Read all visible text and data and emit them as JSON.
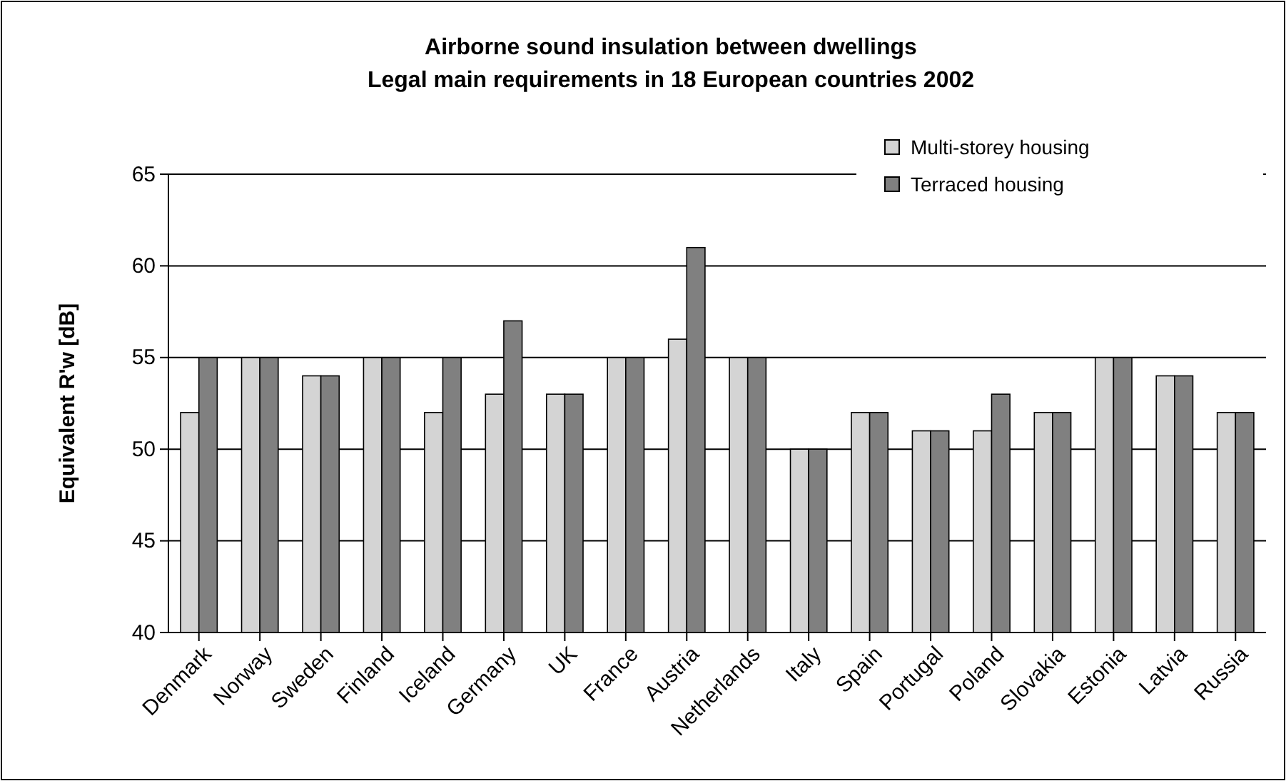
{
  "chart_data": {
    "type": "bar",
    "title": "Airborne sound insulation between dwellings\nLegal main requirements in 18 European countries 2002",
    "ylabel": "Equivalent R'w [dB]",
    "categories": [
      "Denmark",
      "Norway",
      "Sweden",
      "Finland",
      "Iceland",
      "Germany",
      "UK",
      "France",
      "Austria",
      "Netherlands",
      "Italy",
      "Spain",
      "Portugal",
      "Poland",
      "Slovakia",
      "Estonia",
      "Latvia",
      "Russia"
    ],
    "series": [
      {
        "name": "Multi-storey housing",
        "color": "#d4d4d4",
        "values": [
          52,
          55,
          54,
          55,
          52,
          53,
          53,
          55,
          56,
          55,
          50,
          52,
          51,
          51,
          52,
          55,
          54,
          52
        ]
      },
      {
        "name": "Terraced housing",
        "color": "#808080",
        "values": [
          55,
          55,
          54,
          55,
          55,
          57,
          53,
          55,
          61,
          55,
          50,
          52,
          51,
          53,
          52,
          55,
          54,
          52
        ]
      }
    ],
    "ylim": [
      40,
      65
    ],
    "yticks": [
      40,
      45,
      50,
      55,
      60,
      65
    ],
    "grid": "y",
    "legend": "top right"
  }
}
